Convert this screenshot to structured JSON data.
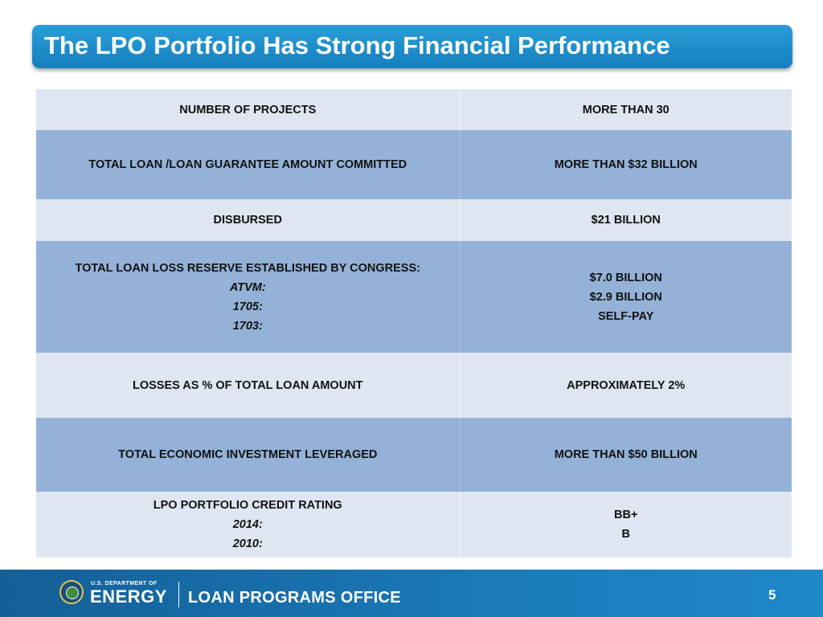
{
  "title": "The LPO Portfolio Has Strong Financial Performance",
  "table": {
    "rows": [
      {
        "label": "NUMBER OF PROJECTS",
        "value": "MORE THAN 30"
      },
      {
        "label": "TOTAL LOAN /LOAN GUARANTEE AMOUNT COMMITTED",
        "value": "MORE THAN $32 BILLION"
      },
      {
        "label": "DISBURSED",
        "value": "$21 BILLION"
      },
      {
        "label": "TOTAL LOAN LOSS RESERVE ESTABLISHED BY CONGRESS:",
        "sublabels": [
          "ATVM:",
          "1705:",
          "1703:"
        ],
        "values": [
          "$7.0 BILLION",
          "$2.9 BILLION",
          "SELF-PAY"
        ]
      },
      {
        "label": "LOSSES AS % OF TOTAL LOAN AMOUNT",
        "value": "APPROXIMATELY 2%"
      },
      {
        "label": "TOTAL ECONOMIC INVESTMENT LEVERAGED",
        "value": "MORE THAN $50 BILLION"
      },
      {
        "label": "LPO PORTFOLIO CREDIT RATING",
        "sublabels": [
          "2014:",
          "2010:"
        ],
        "values": [
          "BB+",
          "B"
        ]
      }
    ]
  },
  "footer": {
    "dept_small": "U.S. DEPARTMENT OF",
    "dept_big": "ENERGY",
    "office": "LOAN PROGRAMS OFFICE",
    "page_number": "5"
  },
  "colors": {
    "title_bar": "#1d8dca",
    "row_light": "#dfe6f2",
    "row_dark": "#94b2d8",
    "footer": "#1a78b7"
  }
}
